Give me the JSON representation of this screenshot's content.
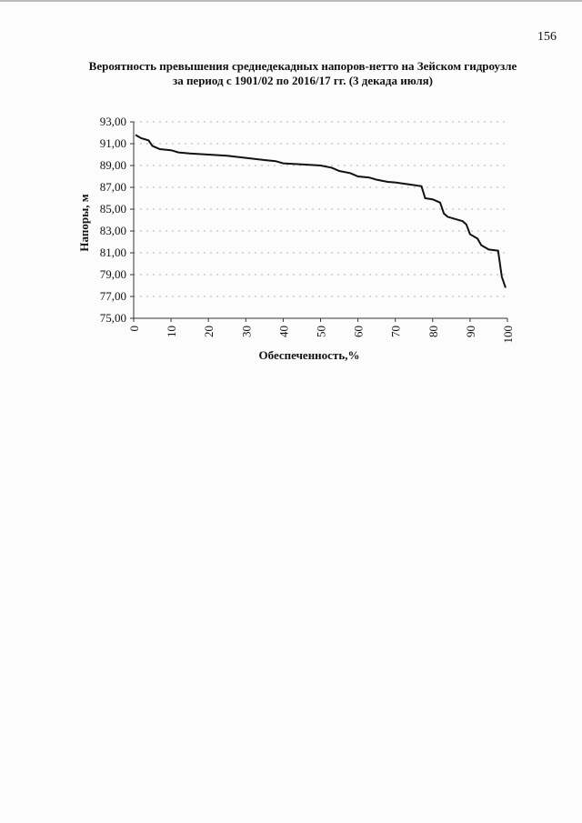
{
  "page_number": "156",
  "chart_data": {
    "type": "line",
    "title": [
      "Вероятность превышения среднедекадных напоров-нетто на Зейском гидроузле",
      "за период с 1901/02 по 2016/17 гг. (3 декада июля)"
    ],
    "x_label": "Обеспеченность,%",
    "y_label": "Напоры, м",
    "x": [
      0.5,
      2,
      4,
      5,
      7,
      10,
      12,
      15,
      20,
      25,
      30,
      35,
      38,
      40,
      45,
      50,
      53,
      55,
      58,
      60,
      63,
      65,
      68,
      70,
      73,
      77,
      78,
      80,
      82,
      83,
      84,
      86,
      88,
      89,
      90,
      92,
      93,
      95,
      97.5,
      98.5,
      99.5
    ],
    "series": [
      {
        "name": "Напоры",
        "color": "#111111",
        "values": [
          91.8,
          91.5,
          91.3,
          90.8,
          90.5,
          90.4,
          90.2,
          90.1,
          90.0,
          89.9,
          89.7,
          89.5,
          89.4,
          89.2,
          89.1,
          89.0,
          88.8,
          88.5,
          88.3,
          88.0,
          87.9,
          87.7,
          87.5,
          87.45,
          87.3,
          87.1,
          86.0,
          85.9,
          85.6,
          84.6,
          84.3,
          84.1,
          83.9,
          83.6,
          82.7,
          82.3,
          81.7,
          81.3,
          81.2,
          78.8,
          77.8
        ]
      }
    ],
    "xlim": [
      0,
      100
    ],
    "xticks": [
      0,
      10,
      20,
      30,
      40,
      50,
      60,
      70,
      80,
      90,
      100
    ],
    "ylim": [
      75,
      93
    ],
    "yticks": [
      {
        "value": 75,
        "label": "75,00"
      },
      {
        "value": 77,
        "label": "77,00"
      },
      {
        "value": 79,
        "label": "79,00"
      },
      {
        "value": 81,
        "label": "81,00"
      },
      {
        "value": 83,
        "label": "83,00"
      },
      {
        "value": 85,
        "label": "85,00"
      },
      {
        "value": 87,
        "label": "87,00"
      },
      {
        "value": 89,
        "label": "89,00"
      },
      {
        "value": 91,
        "label": "91,00"
      },
      {
        "value": 93,
        "label": "93,00"
      }
    ],
    "grid": true
  }
}
